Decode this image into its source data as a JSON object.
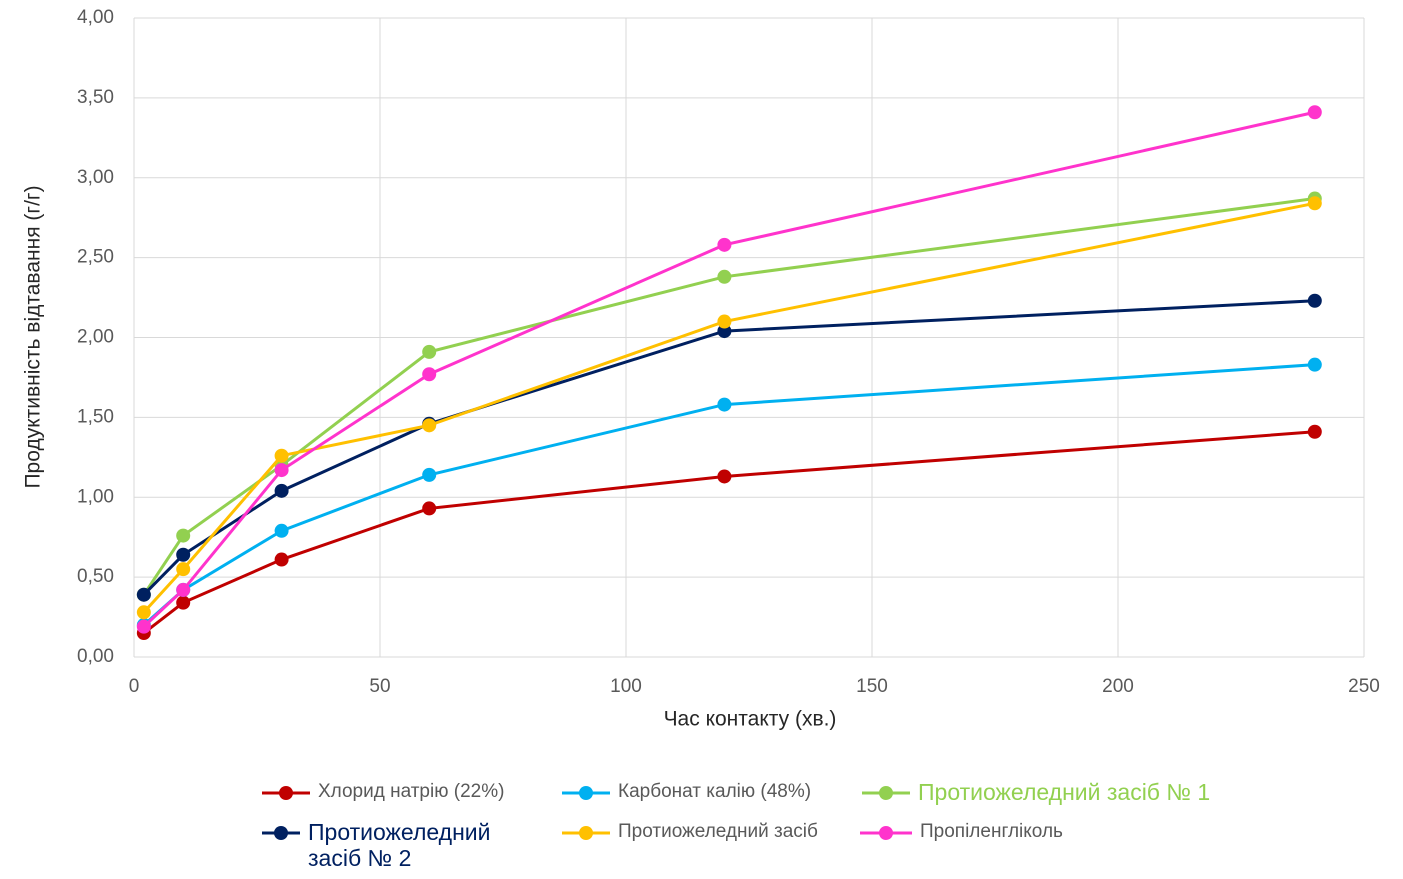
{
  "chart_data": {
    "type": "line",
    "x_label": "Час контакту (хв.)",
    "y_label": "Продуктивність відтавання (г/г)",
    "x": [
      2,
      10,
      30,
      60,
      120,
      240
    ],
    "xlim": [
      0,
      250
    ],
    "xticks": [
      0,
      50,
      100,
      150,
      200,
      250
    ],
    "ylim": [
      0,
      4
    ],
    "yticks": [
      {
        "value": 0,
        "label": "0,00"
      },
      {
        "value": 0.5,
        "label": "0,50"
      },
      {
        "value": 1,
        "label": "1,00"
      },
      {
        "value": 1.5,
        "label": "1,50"
      },
      {
        "value": 2,
        "label": "2,00"
      },
      {
        "value": 2.5,
        "label": "2,50"
      },
      {
        "value": 3,
        "label": "3,00"
      },
      {
        "value": 3.5,
        "label": "3,50"
      },
      {
        "value": 4,
        "label": "4,00"
      }
    ],
    "grid": true,
    "legend": "bottom",
    "series": [
      {
        "name": "Хлорид натрію (22%)",
        "color": "#c00000",
        "values": [
          0.15,
          0.34,
          0.61,
          0.93,
          1.13,
          1.41
        ]
      },
      {
        "name": "Карбонат калію (48%)",
        "color": "#00b0f0",
        "values": [
          0.2,
          0.42,
          0.79,
          1.14,
          1.58,
          1.83
        ]
      },
      {
        "name": "Протиожеледний засіб № 1",
        "color": "#92d050",
        "values": [
          0.39,
          0.76,
          1.2,
          1.91,
          2.38,
          2.87
        ]
      },
      {
        "name": "Протиожеледний засіб № 2",
        "color": "#002060",
        "values": [
          0.39,
          0.64,
          1.04,
          1.46,
          2.04,
          2.23
        ]
      },
      {
        "name": "Протиожеледний засіб",
        "color": "#ffc000",
        "values": [
          0.28,
          0.55,
          1.26,
          1.45,
          2.1,
          2.84
        ]
      },
      {
        "name": "Пропіленгліколь",
        "color": "#ff33cc",
        "values": [
          0.19,
          0.42,
          1.17,
          1.77,
          2.58,
          3.41
        ]
      }
    ]
  }
}
